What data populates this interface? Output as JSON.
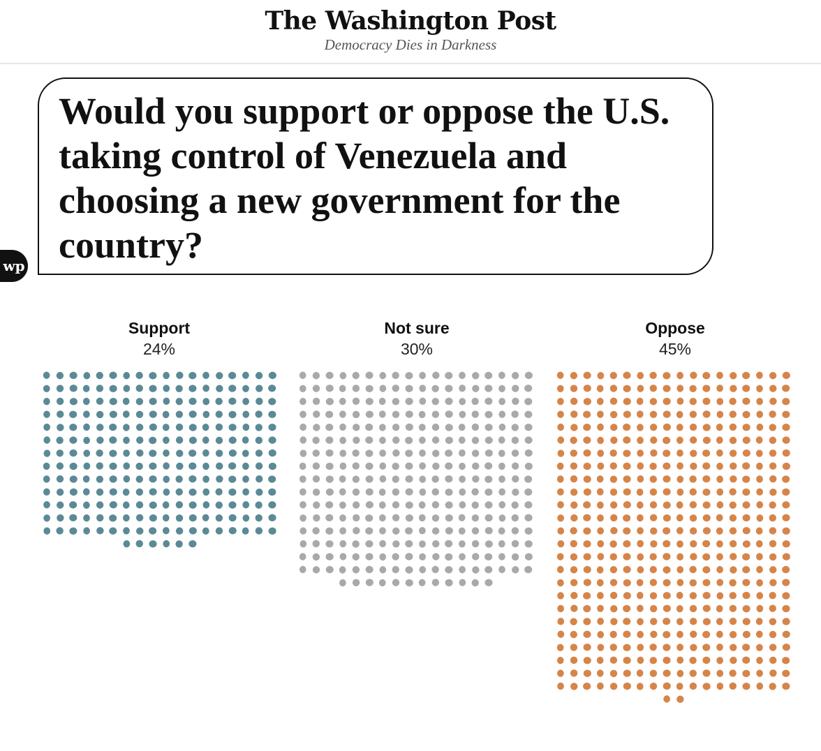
{
  "header": {
    "brand": "The Washington Post",
    "tagline": "Democracy Dies in Darkness",
    "logo_text": "wp"
  },
  "question": {
    "text": "Would you support or oppose the U.S. taking control of Venezuela and choosing a new government for the country?"
  },
  "chart_data": {
    "type": "waffle",
    "title": "Would you support or oppose the U.S. taking control of Venezuela and choosing a new government for the country?",
    "unit": "each dot represents a share of respondents",
    "categories": [
      "Support",
      "Not sure",
      "Oppose"
    ],
    "values": [
      24,
      30,
      45
    ],
    "value_labels": [
      "24%",
      "30%",
      "45%"
    ],
    "dot_counts": [
      240,
      300,
      452
    ],
    "columns_per_group": 18,
    "colors": [
      "#5b8a96",
      "#a9a9a9",
      "#d6854a"
    ]
  }
}
